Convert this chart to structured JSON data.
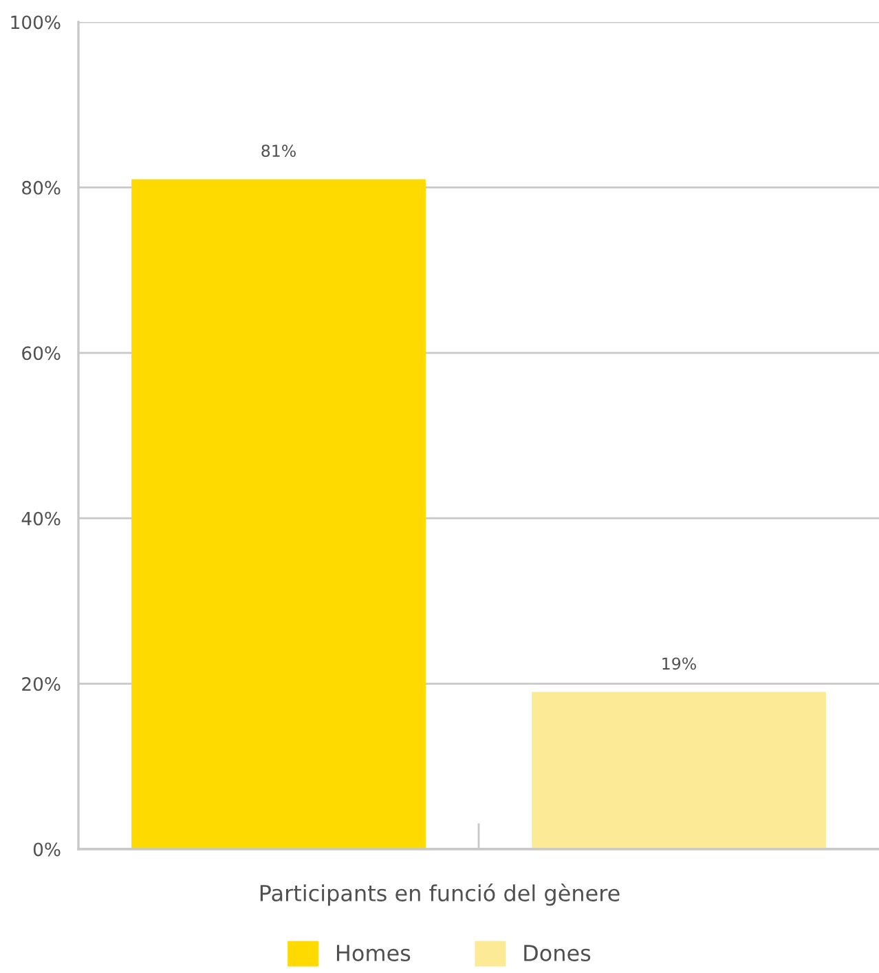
{
  "chart_data": {
    "type": "bar",
    "xlabel": "Participants en funció del gènere",
    "categories": [
      null,
      null
    ],
    "series": [
      {
        "name": "Homes",
        "color": "#ffda00",
        "values": [
          81,
          null
        ],
        "value_labels": [
          "81%",
          null
        ]
      },
      {
        "name": "Dones",
        "color": "#fdea97",
        "values": [
          null,
          19
        ],
        "value_labels": [
          null,
          "19%"
        ]
      }
    ],
    "ylim": [
      0,
      100
    ],
    "yticks": [
      {
        "value": 0,
        "label": "0%"
      },
      {
        "value": 20,
        "label": "20%"
      },
      {
        "value": 40,
        "label": "40%"
      },
      {
        "value": 60,
        "label": "60%"
      },
      {
        "value": 80,
        "label": "80%"
      },
      {
        "value": 100,
        "label": "100%"
      }
    ],
    "grid": "y",
    "legend": "bottom"
  }
}
